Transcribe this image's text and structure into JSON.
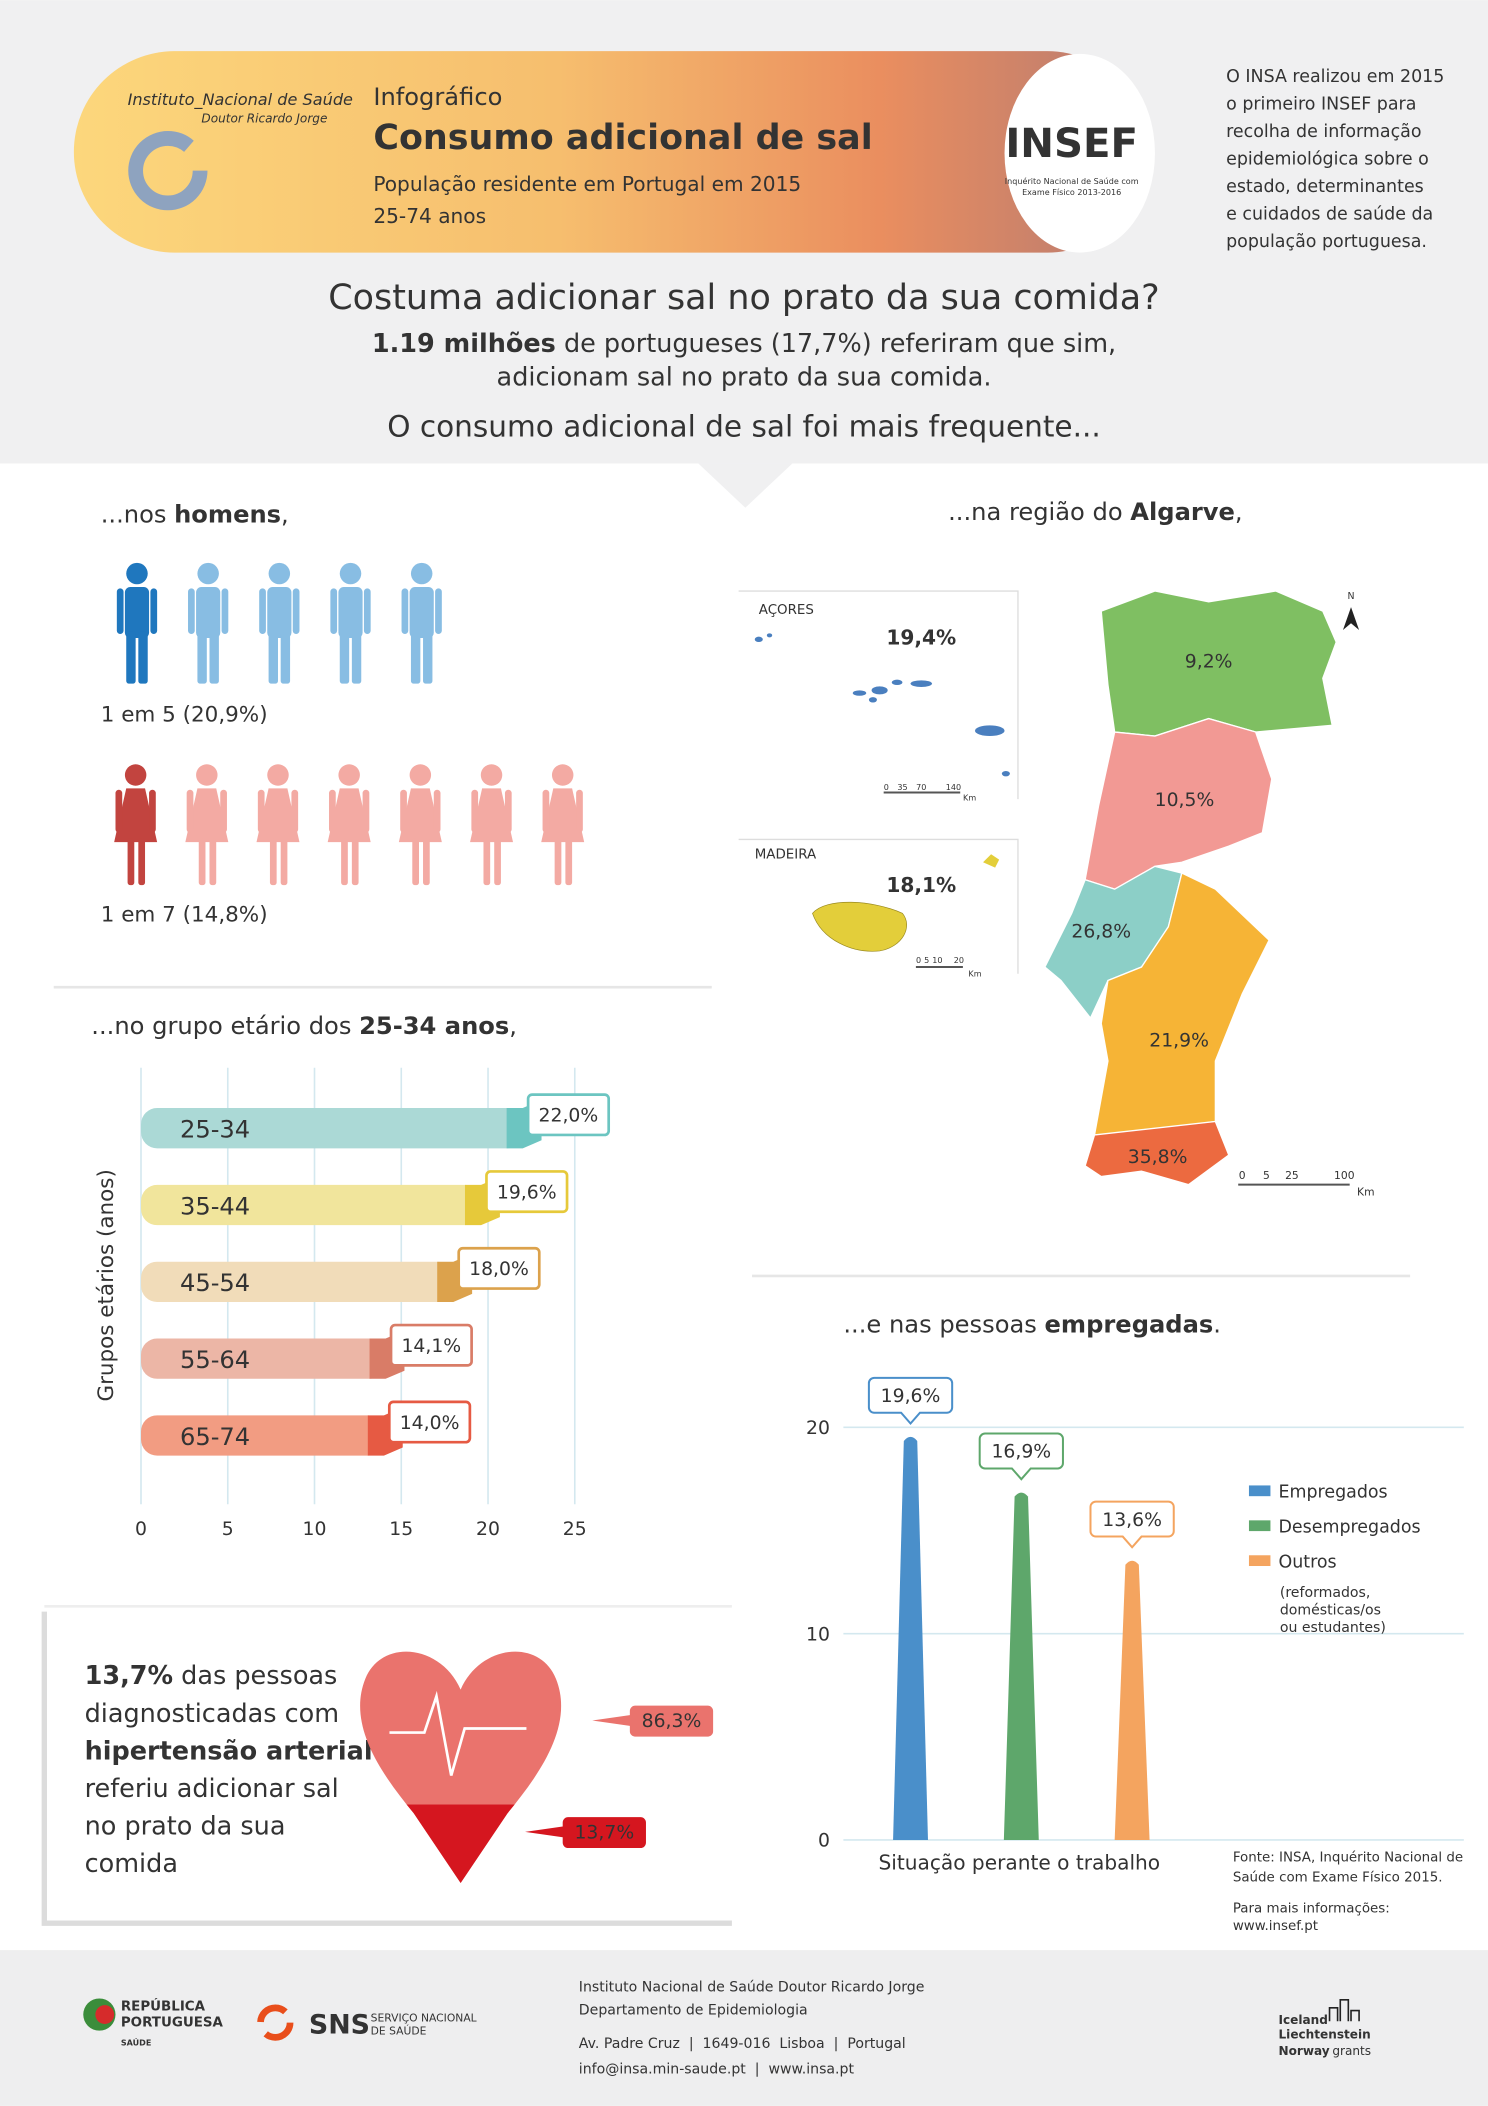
{
  "header": {
    "institute": "Instituto_Nacional de Saúde",
    "institute_sub": "Doutor Ricardo Jorge",
    "kicker": "Infográfico",
    "title": "Consumo adicional de sal",
    "subtitle": "População residente em Portugal em 2015",
    "age_range": "25-74 anos",
    "logo": "INSEF",
    "logo_caption": [
      "Inquérito Nacional de Saúde com",
      "Exame Físico 2013-2016"
    ]
  },
  "intro": [
    "O INSA realizou em 2015",
    "o primeiro INSEF para",
    "recolha de informação",
    "epidemiológica sobre o",
    "estado, determinantes",
    "e cuidados de saúde da",
    "população portuguesa."
  ],
  "question": {
    "title": "Costuma adicionar sal no prato da sua comida?",
    "answer_bold": "1.19 milhões",
    "answer": " de portugueses (17,7%) referiram que sim,",
    "answer_line2": "adicionam sal no prato da sua comida.",
    "lead": "O consumo adicional de sal foi mais frequente..."
  },
  "sex": {
    "heading": [
      "...nos ",
      "homens",
      ","
    ],
    "men_label": "1 em 5 (20,9%)",
    "women_label": "1 em 7 (14,8%)"
  },
  "region": {
    "heading": [
      "...na região do ",
      "Algarve",
      ","
    ],
    "north": "N",
    "azores": {
      "name": "AÇORES",
      "value": "19,4%",
      "scale": [
        "0",
        "35",
        "70",
        "140",
        "Km"
      ]
    },
    "madeira": {
      "name": "MADEIRA",
      "value": "18,1%",
      "scale": [
        "0",
        "5",
        "10",
        "20",
        "Km"
      ]
    },
    "mainland": {
      "regions": [
        "9,2%",
        "10,5%",
        "26,8%",
        "21,9%",
        "35,8%"
      ],
      "scale": [
        "0",
        "5",
        "25",
        "100",
        "Km"
      ]
    }
  },
  "age": {
    "heading": [
      "...no grupo etário dos ",
      "25-34 anos",
      ","
    ]
  },
  "employment": {
    "heading": [
      "...e nas pessoas ",
      "empregadas",
      "."
    ]
  },
  "hypertension": {
    "text": [
      "13,7%",
      " das pessoas",
      "diagnosticadas com",
      "hipertensão arterial",
      "referiu adicionar sal",
      "no prato da sua",
      "comida"
    ]
  },
  "source": {
    "text": [
      "Fonte: INSA, Inquérito Nacional de",
      "Saúde com Exame Físico 2015."
    ],
    "more": [
      "Para mais informações:",
      "www.insef.pt"
    ]
  },
  "footer": {
    "republica": [
      "REPÚBLICA",
      "PORTUGUESA",
      "SAÚDE"
    ],
    "sns": [
      "SNS",
      "SERVIÇO NACIONAL",
      "DE SAÚDE"
    ],
    "address": [
      "Instituto Nacional de Saúde Doutor Ricardo Jorge",
      "Departamento de Epidemiologia",
      "Av. Padre Cruz  |  1649-016  Lisboa  |  Portugal",
      "info@insa.min-saude.pt  |  www.insa.pt"
    ],
    "grants": [
      "Iceland",
      "Liechtenstein",
      "Norway",
      "grants"
    ]
  },
  "chart_data": [
    {
      "type": "bar",
      "orientation": "horizontal",
      "ylabel": "Grupos etários (anos)",
      "categories": [
        "25-34",
        "35-44",
        "45-54",
        "55-64",
        "65-74"
      ],
      "values": [
        22.0,
        19.6,
        18.0,
        14.1,
        14.0
      ],
      "value_labels": [
        "22,0%",
        "19,6%",
        "18,0%",
        "14,1%",
        "14,0%"
      ],
      "colors": [
        "#abd9d6",
        "#f1e59c",
        "#f1dcb9",
        "#ecb6a6",
        "#f29c82"
      ],
      "accent_colors": [
        "#6cc5c1",
        "#e6c93a",
        "#dca24c",
        "#d97c67",
        "#e65a43"
      ],
      "xlim": [
        0,
        25
      ],
      "xticks": [
        0,
        5,
        10,
        15,
        20,
        25
      ],
      "grid": true
    },
    {
      "type": "bar",
      "xlabel": "Situação perante o trabalho",
      "series": [
        {
          "name": "Empregados",
          "color": "#4a8fca",
          "values": [
            19.6
          ],
          "value_labels": [
            "19,6%"
          ]
        },
        {
          "name": "Desempregados",
          "color": "#5ea76b",
          "values": [
            16.9
          ],
          "value_labels": [
            "16,9%"
          ]
        },
        {
          "name": "Outros",
          "color": "#f4a45f",
          "values": [
            13.6
          ],
          "value_labels": [
            "13,6%"
          ]
        }
      ],
      "legend_note": [
        "(reformados,",
        "domésticas/os",
        "ou estudantes)"
      ],
      "ylim": [
        0,
        22
      ],
      "yticks": [
        0,
        10,
        20
      ],
      "grid": true,
      "legend": "right"
    },
    {
      "type": "heart",
      "values": [
        86.3,
        13.7
      ],
      "value_labels": [
        "86,3%",
        "13,7%"
      ],
      "colors": [
        "#ea736d",
        "#d5161f"
      ]
    }
  ]
}
